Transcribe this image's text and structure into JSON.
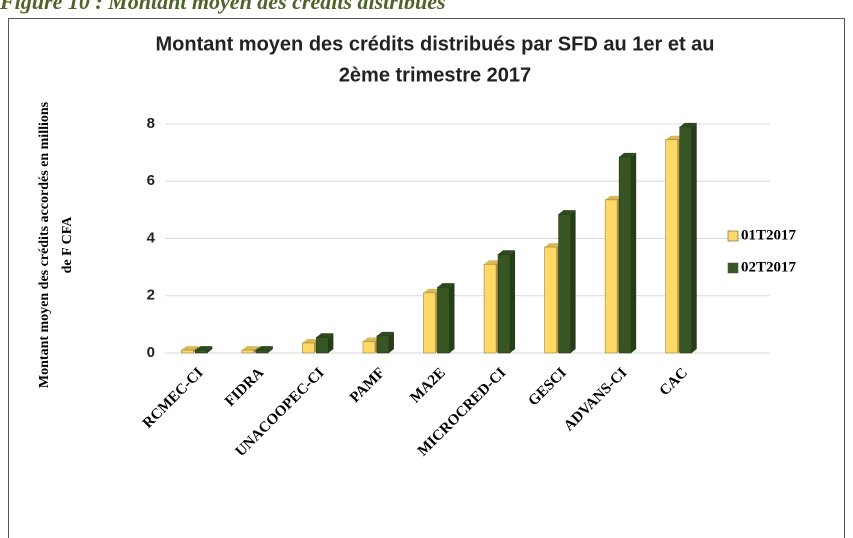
{
  "caption": "Figure 10 : Montant moyen des crédits distribués",
  "chart_data": {
    "type": "bar",
    "title": [
      "Montant moyen des crédits distribués par SFD au 1er et au",
      "2ème trimestre 2017"
    ],
    "ylabel": [
      "Montant moyen des crédits accordés en millions",
      "de F CFA"
    ],
    "categories": [
      "RCMEC-CI",
      "FIDRA",
      "UNACOOPEC-CI",
      "PAMF",
      "MA2E",
      "MICROCRED-CI",
      "GESCI",
      "ADVANS-CI",
      "CAC"
    ],
    "series": [
      {
        "name": "01T2017",
        "color": "#ffd966",
        "values": [
          0.1,
          0.1,
          0.35,
          0.4,
          2.1,
          3.1,
          3.7,
          5.35,
          7.45
        ]
      },
      {
        "name": "02T2017",
        "color": "#375623",
        "values": [
          0.1,
          0.1,
          0.55,
          0.6,
          2.3,
          3.45,
          4.85,
          6.85,
          7.9
        ]
      }
    ],
    "ylim": [
      0,
      8
    ],
    "yticks": [
      0,
      2,
      4,
      6,
      8
    ],
    "grid": true,
    "legend": "right"
  }
}
